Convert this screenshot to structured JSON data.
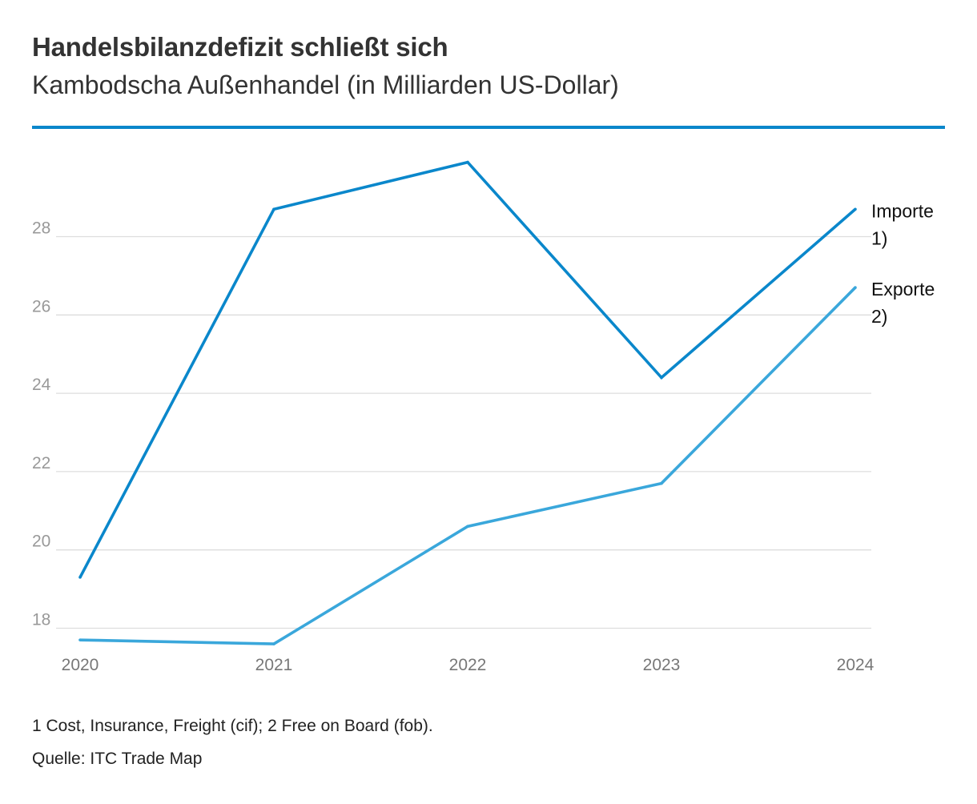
{
  "colors": {
    "rule": "#0a87cb",
    "importe": "#0a87cb",
    "exporte": "#3aa7db"
  },
  "chart_data": {
    "type": "line",
    "title": "Handelsbilanzdefizit schließt sich",
    "subtitle": "Kambodscha Außenhandel (in Milliarden US-Dollar)",
    "categories": [
      "2020",
      "2021",
      "2022",
      "2023",
      "2024"
    ],
    "series": [
      {
        "name": "Importe 1)",
        "label_lines": [
          "Importe",
          "1)"
        ],
        "values": [
          19.3,
          28.7,
          29.9,
          24.4,
          28.7
        ]
      },
      {
        "name": "Exporte 2)",
        "label_lines": [
          "Exporte",
          "2)"
        ],
        "values": [
          17.7,
          17.6,
          20.6,
          21.7,
          26.7
        ]
      }
    ],
    "yticks": [
      18,
      20,
      22,
      24,
      26,
      28
    ],
    "ylim": [
      17.4,
      30.2
    ],
    "xlabel": "",
    "ylabel": "",
    "grid": true
  },
  "footnote": "1 Cost, Insurance, Freight (cif); 2 Free on Board (fob).",
  "source": "Quelle: ITC Trade Map"
}
